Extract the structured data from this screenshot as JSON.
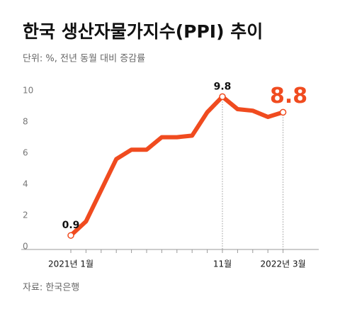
{
  "chart_data": {
    "type": "line",
    "title": "한국 생산자물가지수(PPI) 추이",
    "subtitle": "단위: %, 전년 동월 대비 증감률",
    "source": "자료: 한국은행",
    "categories": [
      "2021년 1월",
      null,
      null,
      null,
      null,
      null,
      null,
      null,
      null,
      null,
      "11월",
      null,
      null,
      null,
      "2022년 3월"
    ],
    "values": [
      0.9,
      1.8,
      3.8,
      5.8,
      6.4,
      6.4,
      7.2,
      7.2,
      7.3,
      8.8,
      9.8,
      9.0,
      8.9,
      8.5,
      8.8
    ],
    "value_labels": [
      "0.9",
      null,
      null,
      null,
      null,
      null,
      null,
      null,
      null,
      null,
      "9.8",
      null,
      null,
      null,
      "8.8"
    ],
    "color": "#f04b1f",
    "ylim": [
      0,
      10
    ],
    "yticks": [
      0,
      2,
      4,
      6,
      8,
      10
    ],
    "grid": false
  }
}
